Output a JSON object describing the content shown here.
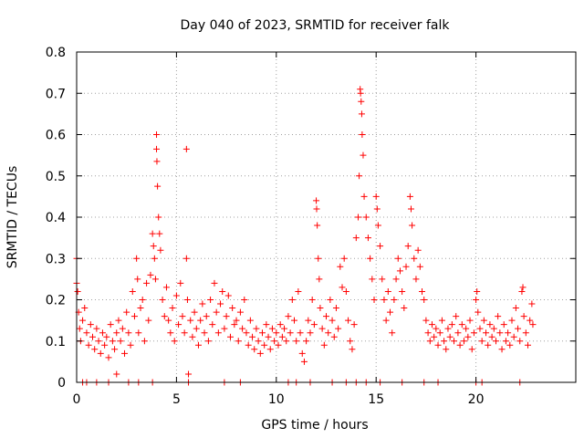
{
  "chart_data": {
    "type": "scatter",
    "title": "Day 040 of 2023, SRMTID for receiver falk",
    "xlabel": "GPS time / hours",
    "ylabel": "SRMTID / TECUs",
    "xlim": [
      0,
      25
    ],
    "ylim": [
      0,
      0.8
    ],
    "x_ticks": [
      0,
      5,
      10,
      15,
      20
    ],
    "x_tick_labels": [
      "0",
      "5",
      "10",
      "15",
      "20"
    ],
    "y_ticks": [
      0,
      0.1,
      0.2,
      0.3,
      0.4,
      0.5,
      0.6,
      0.7,
      0.8
    ],
    "y_tick_labels": [
      "0",
      "0.1",
      "0.2",
      "0.3",
      "0.4",
      "0.5",
      "0.6",
      "0.7",
      "0.8"
    ],
    "grid": true,
    "marker": "plus",
    "color": "#ff0000",
    "series": [
      {
        "name": "SRMTID",
        "points": [
          [
            0.0,
            0.3
          ],
          [
            0.0,
            0.24
          ],
          [
            0.05,
            0.22
          ],
          [
            0.1,
            0.17
          ],
          [
            0.15,
            0.13
          ],
          [
            0.2,
            0.1
          ],
          [
            0.3,
            0.15
          ],
          [
            0.4,
            0.18
          ],
          [
            0.5,
            0.12
          ],
          [
            0.6,
            0.09
          ],
          [
            0.7,
            0.14
          ],
          [
            0.8,
            0.11
          ],
          [
            0.9,
            0.08
          ],
          [
            1.0,
            0.13
          ],
          [
            1.1,
            0.1
          ],
          [
            1.2,
            0.07
          ],
          [
            1.3,
            0.12
          ],
          [
            1.4,
            0.09
          ],
          [
            1.5,
            0.11
          ],
          [
            1.6,
            0.06
          ],
          [
            1.7,
            0.14
          ],
          [
            1.8,
            0.1
          ],
          [
            1.9,
            0.08
          ],
          [
            2.0,
            0.12
          ],
          [
            2.0,
            0.02
          ],
          [
            2.1,
            0.15
          ],
          [
            2.2,
            0.1
          ],
          [
            2.3,
            0.13
          ],
          [
            2.4,
            0.07
          ],
          [
            2.5,
            0.17
          ],
          [
            2.6,
            0.12
          ],
          [
            2.7,
            0.09
          ],
          [
            2.8,
            0.22
          ],
          [
            2.9,
            0.16
          ],
          [
            3.0,
            0.3
          ],
          [
            3.05,
            0.25
          ],
          [
            3.1,
            0.12
          ],
          [
            3.2,
            0.18
          ],
          [
            3.3,
            0.2
          ],
          [
            3.4,
            0.1
          ],
          [
            3.5,
            0.24
          ],
          [
            3.6,
            0.15
          ],
          [
            3.7,
            0.26
          ],
          [
            3.8,
            0.36
          ],
          [
            3.85,
            0.33
          ],
          [
            3.9,
            0.3
          ],
          [
            3.95,
            0.25
          ],
          [
            4.0,
            0.6
          ],
          [
            4.0,
            0.565
          ],
          [
            4.02,
            0.535
          ],
          [
            4.05,
            0.475
          ],
          [
            4.1,
            0.4
          ],
          [
            4.15,
            0.36
          ],
          [
            4.2,
            0.32
          ],
          [
            4.3,
            0.2
          ],
          [
            4.4,
            0.16
          ],
          [
            4.5,
            0.23
          ],
          [
            4.6,
            0.15
          ],
          [
            4.7,
            0.12
          ],
          [
            4.8,
            0.18
          ],
          [
            4.9,
            0.1
          ],
          [
            5.0,
            0.21
          ],
          [
            5.1,
            0.14
          ],
          [
            5.2,
            0.24
          ],
          [
            5.3,
            0.16
          ],
          [
            5.4,
            0.12
          ],
          [
            5.5,
            0.565
          ],
          [
            5.5,
            0.3
          ],
          [
            5.55,
            0.2
          ],
          [
            5.6,
            0.02
          ],
          [
            5.7,
            0.15
          ],
          [
            5.8,
            0.11
          ],
          [
            5.9,
            0.17
          ],
          [
            6.0,
            0.13
          ],
          [
            6.1,
            0.09
          ],
          [
            6.2,
            0.15
          ],
          [
            6.3,
            0.19
          ],
          [
            6.4,
            0.12
          ],
          [
            6.5,
            0.16
          ],
          [
            6.6,
            0.1
          ],
          [
            6.7,
            0.2
          ],
          [
            6.8,
            0.14
          ],
          [
            6.9,
            0.24
          ],
          [
            7.0,
            0.17
          ],
          [
            7.1,
            0.12
          ],
          [
            7.2,
            0.19
          ],
          [
            7.3,
            0.22
          ],
          [
            7.4,
            0.13
          ],
          [
            7.5,
            0.16
          ],
          [
            7.6,
            0.21
          ],
          [
            7.7,
            0.11
          ],
          [
            7.8,
            0.18
          ],
          [
            7.9,
            0.14
          ],
          [
            8.0,
            0.15
          ],
          [
            8.1,
            0.1
          ],
          [
            8.2,
            0.17
          ],
          [
            8.3,
            0.13
          ],
          [
            8.4,
            0.2
          ],
          [
            8.5,
            0.12
          ],
          [
            8.6,
            0.09
          ],
          [
            8.7,
            0.15
          ],
          [
            8.8,
            0.11
          ],
          [
            8.9,
            0.08
          ],
          [
            9.0,
            0.13
          ],
          [
            9.1,
            0.1
          ],
          [
            9.2,
            0.07
          ],
          [
            9.3,
            0.12
          ],
          [
            9.4,
            0.09
          ],
          [
            9.5,
            0.14
          ],
          [
            9.6,
            0.11
          ],
          [
            9.7,
            0.08
          ],
          [
            9.8,
            0.13
          ],
          [
            9.9,
            0.1
          ],
          [
            10.0,
            0.12
          ],
          [
            10.1,
            0.09
          ],
          [
            10.2,
            0.14
          ],
          [
            10.3,
            0.11
          ],
          [
            10.4,
            0.13
          ],
          [
            10.5,
            0.1
          ],
          [
            10.6,
            0.16
          ],
          [
            10.7,
            0.12
          ],
          [
            10.8,
            0.2
          ],
          [
            10.9,
            0.15
          ],
          [
            11.0,
            0.1
          ],
          [
            11.1,
            0.22
          ],
          [
            11.2,
            0.12
          ],
          [
            11.3,
            0.07
          ],
          [
            11.4,
            0.05
          ],
          [
            11.5,
            0.1
          ],
          [
            11.6,
            0.15
          ],
          [
            11.7,
            0.12
          ],
          [
            11.8,
            0.2
          ],
          [
            11.9,
            0.14
          ],
          [
            12.0,
            0.44
          ],
          [
            12.02,
            0.42
          ],
          [
            12.05,
            0.38
          ],
          [
            12.1,
            0.3
          ],
          [
            12.15,
            0.25
          ],
          [
            12.2,
            0.18
          ],
          [
            12.3,
            0.13
          ],
          [
            12.4,
            0.09
          ],
          [
            12.5,
            0.16
          ],
          [
            12.6,
            0.12
          ],
          [
            12.7,
            0.2
          ],
          [
            12.8,
            0.15
          ],
          [
            12.9,
            0.11
          ],
          [
            13.0,
            0.18
          ],
          [
            13.1,
            0.13
          ],
          [
            13.2,
            0.28
          ],
          [
            13.3,
            0.23
          ],
          [
            13.4,
            0.3
          ],
          [
            13.5,
            0.22
          ],
          [
            13.6,
            0.15
          ],
          [
            13.7,
            0.1
          ],
          [
            13.8,
            0.08
          ],
          [
            13.9,
            0.14
          ],
          [
            14.0,
            0.35
          ],
          [
            14.1,
            0.4
          ],
          [
            14.15,
            0.5
          ],
          [
            14.2,
            0.71
          ],
          [
            14.22,
            0.7
          ],
          [
            14.25,
            0.68
          ],
          [
            14.28,
            0.65
          ],
          [
            14.3,
            0.6
          ],
          [
            14.35,
            0.55
          ],
          [
            14.4,
            0.45
          ],
          [
            14.5,
            0.4
          ],
          [
            14.6,
            0.35
          ],
          [
            14.7,
            0.3
          ],
          [
            14.8,
            0.25
          ],
          [
            14.9,
            0.2
          ],
          [
            15.0,
            0.45
          ],
          [
            15.05,
            0.42
          ],
          [
            15.1,
            0.38
          ],
          [
            15.2,
            0.33
          ],
          [
            15.3,
            0.25
          ],
          [
            15.4,
            0.2
          ],
          [
            15.5,
            0.15
          ],
          [
            15.6,
            0.22
          ],
          [
            15.7,
            0.17
          ],
          [
            15.8,
            0.12
          ],
          [
            15.9,
            0.2
          ],
          [
            16.0,
            0.25
          ],
          [
            16.1,
            0.3
          ],
          [
            16.2,
            0.27
          ],
          [
            16.3,
            0.22
          ],
          [
            16.4,
            0.18
          ],
          [
            16.5,
            0.28
          ],
          [
            16.6,
            0.33
          ],
          [
            16.7,
            0.45
          ],
          [
            16.75,
            0.42
          ],
          [
            16.8,
            0.38
          ],
          [
            16.9,
            0.3
          ],
          [
            17.0,
            0.25
          ],
          [
            17.1,
            0.32
          ],
          [
            17.2,
            0.28
          ],
          [
            17.3,
            0.22
          ],
          [
            17.4,
            0.2
          ],
          [
            17.5,
            0.15
          ],
          [
            17.6,
            0.12
          ],
          [
            17.7,
            0.1
          ],
          [
            17.8,
            0.14
          ],
          [
            17.9,
            0.11
          ],
          [
            18.0,
            0.13
          ],
          [
            18.1,
            0.09
          ],
          [
            18.2,
            0.12
          ],
          [
            18.3,
            0.15
          ],
          [
            18.4,
            0.1
          ],
          [
            18.5,
            0.08
          ],
          [
            18.6,
            0.13
          ],
          [
            18.7,
            0.11
          ],
          [
            18.8,
            0.14
          ],
          [
            18.9,
            0.1
          ],
          [
            19.0,
            0.16
          ],
          [
            19.1,
            0.12
          ],
          [
            19.2,
            0.09
          ],
          [
            19.3,
            0.14
          ],
          [
            19.4,
            0.1
          ],
          [
            19.5,
            0.13
          ],
          [
            19.6,
            0.11
          ],
          [
            19.7,
            0.15
          ],
          [
            19.8,
            0.08
          ],
          [
            19.9,
            0.12
          ],
          [
            20.0,
            0.2
          ],
          [
            20.05,
            0.22
          ],
          [
            20.1,
            0.17
          ],
          [
            20.2,
            0.13
          ],
          [
            20.3,
            0.1
          ],
          [
            20.4,
            0.15
          ],
          [
            20.5,
            0.12
          ],
          [
            20.6,
            0.09
          ],
          [
            20.7,
            0.14
          ],
          [
            20.8,
            0.11
          ],
          [
            20.9,
            0.13
          ],
          [
            21.0,
            0.1
          ],
          [
            21.1,
            0.16
          ],
          [
            21.2,
            0.12
          ],
          [
            21.3,
            0.08
          ],
          [
            21.4,
            0.14
          ],
          [
            21.5,
            0.1
          ],
          [
            21.6,
            0.12
          ],
          [
            21.7,
            0.09
          ],
          [
            21.8,
            0.15
          ],
          [
            21.9,
            0.11
          ],
          [
            22.0,
            0.18
          ],
          [
            22.1,
            0.13
          ],
          [
            22.2,
            0.1
          ],
          [
            22.3,
            0.22
          ],
          [
            22.35,
            0.23
          ],
          [
            22.4,
            0.16
          ],
          [
            22.5,
            0.12
          ],
          [
            22.6,
            0.09
          ],
          [
            22.7,
            0.15
          ],
          [
            22.8,
            0.19
          ],
          [
            22.85,
            0.14
          ],
          [
            0.3,
            0.0
          ],
          [
            0.5,
            0.0
          ],
          [
            1.0,
            0.0
          ],
          [
            1.6,
            0.0
          ],
          [
            2.6,
            0.0
          ],
          [
            3.1,
            0.0
          ],
          [
            3.8,
            0.0
          ],
          [
            5.6,
            0.0
          ],
          [
            7.4,
            0.0
          ],
          [
            8.2,
            0.0
          ],
          [
            10.6,
            0.0
          ],
          [
            11.0,
            0.0
          ],
          [
            11.7,
            0.0
          ],
          [
            12.8,
            0.0
          ],
          [
            13.5,
            0.0
          ],
          [
            14.0,
            0.0
          ],
          [
            14.5,
            0.0
          ],
          [
            15.2,
            0.0
          ],
          [
            16.3,
            0.0
          ],
          [
            17.4,
            0.0
          ],
          [
            18.1,
            0.0
          ],
          [
            20.0,
            0.0
          ],
          [
            20.3,
            0.0
          ],
          [
            22.2,
            0.0
          ]
        ]
      }
    ]
  }
}
